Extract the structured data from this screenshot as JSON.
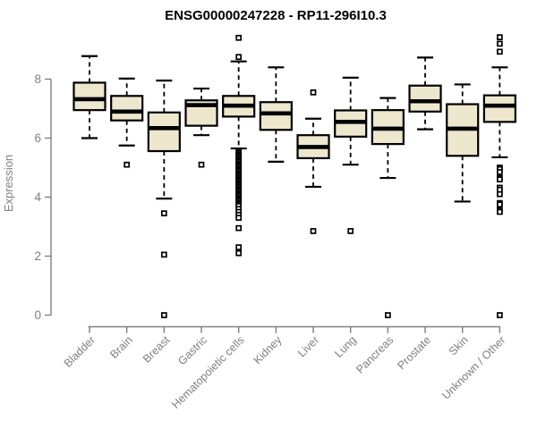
{
  "chart_data": {
    "type": "boxplot",
    "title": "ENSG00000247228 - RP11-296I10.3",
    "ylabel": "Expression",
    "xlabel": "",
    "ylim": [
      0,
      9.5
    ],
    "yticks": [
      0,
      2,
      4,
      6,
      8
    ],
    "grid": false,
    "legend": "none",
    "colors": {
      "box_fill": "#ede7ce",
      "box_stroke": "#000000",
      "median": "#000000",
      "whisker": "#000000",
      "outlier_stroke": "#000000",
      "outlier_fill": "#ffffff",
      "axis": "#7f7f7f",
      "tick_label": "#7f7f7f",
      "title": "#000000",
      "background": "#ffffff"
    },
    "categories": [
      "Bladder",
      "Brain",
      "Breast",
      "Gastric",
      "Hematopoietic cells",
      "Kidney",
      "Liver",
      "Lung",
      "Pancreas",
      "Prostate",
      "Skin",
      "Unknown / Other"
    ],
    "series": [
      {
        "category": "Bladder",
        "whisker_low": 6.0,
        "q1": 6.95,
        "median": 7.32,
        "q3": 7.88,
        "whisker_high": 8.78,
        "outliers": []
      },
      {
        "category": "Brain",
        "whisker_low": 5.75,
        "q1": 6.6,
        "median": 6.9,
        "q3": 7.43,
        "whisker_high": 8.02,
        "outliers": [
          5.1
        ]
      },
      {
        "category": "Breast",
        "whisker_low": 3.95,
        "q1": 5.56,
        "median": 6.34,
        "q3": 6.87,
        "whisker_high": 7.95,
        "outliers": [
          3.45,
          2.05,
          0
        ]
      },
      {
        "category": "Gastric",
        "whisker_low": 6.1,
        "q1": 6.42,
        "median": 7.12,
        "q3": 7.28,
        "whisker_high": 7.68,
        "outliers": [
          5.1
        ]
      },
      {
        "category": "Hematopoietic cells",
        "whisker_low": 5.65,
        "q1": 6.73,
        "median": 7.1,
        "q3": 7.43,
        "whisker_high": 8.6,
        "outliers": [
          9.4,
          8.75,
          5.55,
          5.5,
          5.45,
          5.4,
          5.35,
          5.3,
          5.25,
          5.2,
          5.15,
          5.1,
          5.05,
          5.0,
          4.95,
          4.9,
          4.85,
          4.8,
          4.75,
          4.7,
          4.65,
          4.6,
          4.55,
          4.5,
          4.45,
          4.4,
          4.35,
          4.3,
          4.25,
          4.2,
          4.15,
          4.1,
          4.05,
          4.0,
          3.95,
          3.9,
          3.85,
          3.8,
          3.75,
          3.7,
          3.6,
          3.5,
          3.4,
          3.3,
          2.95,
          2.3,
          2.1
        ]
      },
      {
        "category": "Kidney",
        "whisker_low": 5.2,
        "q1": 6.28,
        "median": 6.84,
        "q3": 7.22,
        "whisker_high": 8.4,
        "outliers": []
      },
      {
        "category": "Liver",
        "whisker_low": 4.35,
        "q1": 5.32,
        "median": 5.7,
        "q3": 6.1,
        "whisker_high": 6.66,
        "outliers": [
          7.55,
          2.85
        ]
      },
      {
        "category": "Lung",
        "whisker_low": 5.1,
        "q1": 6.05,
        "median": 6.55,
        "q3": 6.94,
        "whisker_high": 8.05,
        "outliers": [
          2.85
        ]
      },
      {
        "category": "Pancreas",
        "whisker_low": 4.65,
        "q1": 5.8,
        "median": 6.32,
        "q3": 6.95,
        "whisker_high": 7.36,
        "outliers": [
          0
        ]
      },
      {
        "category": "Prostate",
        "whisker_low": 6.3,
        "q1": 6.9,
        "median": 7.25,
        "q3": 7.78,
        "whisker_high": 8.73,
        "outliers": []
      },
      {
        "category": "Skin",
        "whisker_low": 3.85,
        "q1": 5.4,
        "median": 6.32,
        "q3": 7.15,
        "whisker_high": 7.82,
        "outliers": []
      },
      {
        "category": "Unknown / Other",
        "whisker_low": 5.35,
        "q1": 6.55,
        "median": 7.1,
        "q3": 7.45,
        "whisker_high": 8.4,
        "outliers": [
          9.42,
          9.2,
          8.93,
          5.0,
          4.95,
          4.85,
          4.65,
          4.6,
          4.32,
          4.25,
          4.1,
          3.8,
          3.75,
          3.55,
          3.5,
          0
        ]
      }
    ]
  }
}
